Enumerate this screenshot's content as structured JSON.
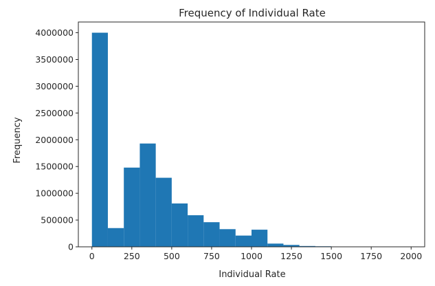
{
  "chart_data": {
    "type": "bar",
    "subtype": "histogram",
    "title": "Frequency of Individual Rate",
    "xlabel": "Individual Rate",
    "ylabel": "Frequency",
    "bar_color": "#1f77b4",
    "bin_width": 100,
    "bin_start": 0,
    "bins": [
      [
        0,
        100
      ],
      [
        100,
        200
      ],
      [
        200,
        300
      ],
      [
        300,
        400
      ],
      [
        400,
        500
      ],
      [
        500,
        600
      ],
      [
        600,
        700
      ],
      [
        700,
        800
      ],
      [
        800,
        900
      ],
      [
        900,
        1000
      ],
      [
        1000,
        1100
      ],
      [
        1100,
        1200
      ],
      [
        1200,
        1300
      ],
      [
        1300,
        1400
      ],
      [
        1400,
        1500
      ],
      [
        1500,
        1600
      ],
      [
        1600,
        1700
      ],
      [
        1700,
        1800
      ],
      [
        1800,
        1900
      ],
      [
        1900,
        2000
      ]
    ],
    "values": [
      4000000,
      350000,
      1480000,
      1930000,
      1290000,
      810000,
      590000,
      460000,
      330000,
      210000,
      320000,
      60000,
      35000,
      15000,
      10000,
      5000,
      3000,
      2000,
      1000,
      1000
    ],
    "xlim": [
      -85,
      2085
    ],
    "ylim": [
      0,
      4200000
    ],
    "xticks": [
      0,
      250,
      500,
      750,
      1000,
      1250,
      1500,
      1750,
      2000
    ],
    "xtick_labels": [
      "0",
      "250",
      "500",
      "750",
      "1000",
      "1250",
      "1500",
      "1750",
      "2000"
    ],
    "yticks": [
      0,
      500000,
      1000000,
      1500000,
      2000000,
      2500000,
      3000000,
      3500000,
      4000000
    ],
    "ytick_labels": [
      "0",
      "500000",
      "1000000",
      "1500000",
      "2000000",
      "2500000",
      "3000000",
      "3500000",
      "4000000"
    ],
    "grid": false,
    "legend": "none"
  }
}
